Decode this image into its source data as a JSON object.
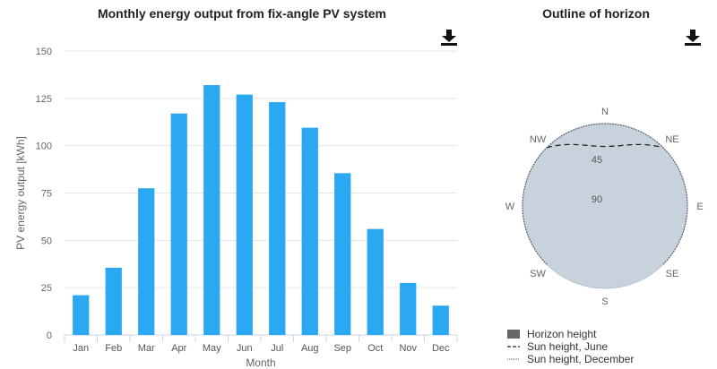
{
  "chart_data": [
    {
      "type": "bar",
      "title": "Monthly energy output from fix-angle PV system",
      "xlabel": "Month",
      "ylabel": "PV energy output [kWh]",
      "categories": [
        "Jan",
        "Feb",
        "Mar",
        "Apr",
        "May",
        "Jun",
        "Jul",
        "Aug",
        "Sep",
        "Oct",
        "Nov",
        "Dec"
      ],
      "values": [
        21,
        35.5,
        77.5,
        117,
        132,
        127,
        123,
        109.5,
        85.5,
        56,
        27.5,
        15.5
      ],
      "ylim": [
        0,
        150
      ],
      "yticks": [
        0,
        25,
        50,
        75,
        100,
        125,
        150
      ],
      "grid": true,
      "color": "#2aa8f2"
    },
    {
      "type": "polar",
      "title": "Outline of horizon",
      "directions": [
        "N",
        "NE",
        "E",
        "SE",
        "S",
        "SW",
        "W",
        "NW"
      ],
      "radial_labels": [
        "45",
        "90"
      ],
      "legend": [
        "Horizon height",
        "Sun height, June",
        "Sun height, December"
      ],
      "disc_color": "#c7d2dc",
      "horizon_color": "#666666",
      "series": [
        {
          "name": "Sun height, June",
          "style": "dashed",
          "azimuth_start_deg": -45,
          "azimuth_end_deg": 45,
          "min_elevation_deg": 25
        },
        {
          "name": "Sun height, December",
          "style": "dotted",
          "azimuth_start_deg": -133,
          "azimuth_end_deg": 133,
          "min_elevation_deg": 0
        }
      ]
    }
  ],
  "download_icon": "download-icon"
}
